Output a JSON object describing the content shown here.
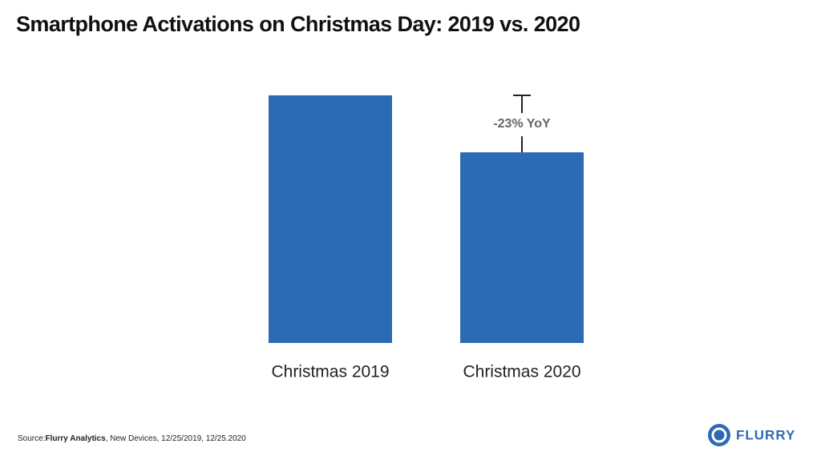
{
  "chart_data": {
    "type": "bar",
    "title": "Smartphone Activations on Christmas Day: 2019 vs. 2020",
    "categories": [
      "Christmas 2019",
      "Christmas 2020"
    ],
    "values": [
      100,
      77
    ],
    "color": "#2c6bb3",
    "annotation": "-23% YoY",
    "source_label": "Source:",
    "source_name": "Flurry Analytics",
    "source_detail": ", New Devices, 12/25/2019, 12/25.2020",
    "logo": "FLURRY"
  }
}
